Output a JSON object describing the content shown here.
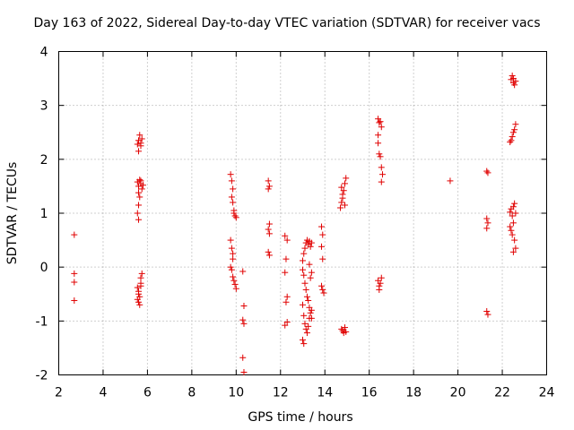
{
  "chart_data": {
    "type": "scatter",
    "title": "Day 163 of 2022, Sidereal Day-to-day VTEC variation (SDTVAR) for receiver vacs",
    "xlabel": "GPS time / hours",
    "ylabel": "SDTVAR / TECUs",
    "xlim": [
      2,
      24
    ],
    "ylim": [
      -2,
      4
    ],
    "xticks": [
      "2",
      "4",
      "6",
      "8",
      "10",
      "12",
      "14",
      "16",
      "18",
      "20",
      "22",
      "24"
    ],
    "yticks": [
      "-2",
      "-1",
      "0",
      "1",
      "2",
      "3",
      "4"
    ],
    "grid": true,
    "marker": "+",
    "color": "#e00000",
    "series": [
      {
        "name": "SDTVAR",
        "points": [
          [
            2.7,
            0.6
          ],
          [
            2.7,
            -0.12
          ],
          [
            2.7,
            -0.28
          ],
          [
            2.7,
            -0.62
          ],
          [
            5.55,
            2.28
          ],
          [
            5.6,
            2.35
          ],
          [
            5.65,
            2.45
          ],
          [
            5.7,
            2.3
          ],
          [
            5.75,
            2.38
          ],
          [
            5.6,
            2.15
          ],
          [
            5.7,
            2.25
          ],
          [
            5.55,
            1.58
          ],
          [
            5.6,
            1.5
          ],
          [
            5.65,
            1.62
          ],
          [
            5.7,
            1.55
          ],
          [
            5.75,
            1.45
          ],
          [
            5.6,
            1.38
          ],
          [
            5.65,
            1.3
          ],
          [
            5.7,
            1.6
          ],
          [
            5.8,
            1.52
          ],
          [
            5.6,
            1.15
          ],
          [
            5.55,
            1.0
          ],
          [
            5.6,
            0.88
          ],
          [
            5.55,
            -0.38
          ],
          [
            5.6,
            -0.45
          ],
          [
            5.65,
            -0.55
          ],
          [
            5.7,
            -0.35
          ],
          [
            5.75,
            -0.12
          ],
          [
            5.7,
            -0.2
          ],
          [
            5.6,
            -0.65
          ],
          [
            5.65,
            -0.7
          ],
          [
            5.55,
            -0.6
          ],
          [
            5.7,
            -0.3
          ],
          [
            5.6,
            -0.5
          ],
          [
            9.75,
            1.72
          ],
          [
            9.8,
            1.6
          ],
          [
            9.85,
            1.45
          ],
          [
            9.8,
            1.3
          ],
          [
            9.85,
            1.2
          ],
          [
            9.9,
            1.05
          ],
          [
            9.95,
            0.95
          ],
          [
            9.9,
            1.0
          ],
          [
            10.0,
            0.92
          ],
          [
            9.75,
            0.5
          ],
          [
            9.8,
            0.35
          ],
          [
            9.85,
            0.25
          ],
          [
            9.75,
            0.0
          ],
          [
            9.8,
            -0.05
          ],
          [
            9.85,
            -0.18
          ],
          [
            9.9,
            -0.25
          ],
          [
            9.95,
            -0.32
          ],
          [
            10.0,
            -0.4
          ],
          [
            9.85,
            0.15
          ],
          [
            10.3,
            -0.08
          ],
          [
            10.35,
            -0.72
          ],
          [
            10.3,
            -0.98
          ],
          [
            10.35,
            -1.05
          ],
          [
            10.3,
            -1.68
          ],
          [
            10.35,
            -1.95
          ],
          [
            11.45,
            1.6
          ],
          [
            11.5,
            1.5
          ],
          [
            11.45,
            1.45
          ],
          [
            11.5,
            0.8
          ],
          [
            11.45,
            0.7
          ],
          [
            11.5,
            0.62
          ],
          [
            11.45,
            0.28
          ],
          [
            11.5,
            0.22
          ],
          [
            12.2,
            0.58
          ],
          [
            12.3,
            0.5
          ],
          [
            12.25,
            0.15
          ],
          [
            12.2,
            -0.1
          ],
          [
            12.3,
            -0.55
          ],
          [
            12.25,
            -0.65
          ],
          [
            12.3,
            -1.02
          ],
          [
            12.2,
            -1.08
          ],
          [
            13.0,
            0.12
          ],
          [
            13.05,
            0.25
          ],
          [
            13.1,
            0.35
          ],
          [
            13.15,
            0.45
          ],
          [
            13.2,
            0.5
          ],
          [
            13.25,
            0.42
          ],
          [
            13.3,
            0.48
          ],
          [
            13.35,
            0.38
          ],
          [
            13.4,
            0.45
          ],
          [
            13.0,
            -0.05
          ],
          [
            13.05,
            -0.15
          ],
          [
            13.1,
            -0.3
          ],
          [
            13.15,
            -0.42
          ],
          [
            13.2,
            -0.55
          ],
          [
            13.25,
            -0.62
          ],
          [
            13.3,
            -0.75
          ],
          [
            13.35,
            -0.85
          ],
          [
            13.4,
            -0.95
          ],
          [
            13.0,
            -0.7
          ],
          [
            13.05,
            -0.9
          ],
          [
            13.1,
            -1.05
          ],
          [
            13.15,
            -1.15
          ],
          [
            13.2,
            -1.22
          ],
          [
            13.0,
            -1.35
          ],
          [
            13.05,
            -1.42
          ],
          [
            13.25,
            -1.1
          ],
          [
            13.3,
            -0.95
          ],
          [
            13.4,
            -0.8
          ],
          [
            13.35,
            -0.2
          ],
          [
            13.4,
            -0.1
          ],
          [
            13.3,
            0.05
          ],
          [
            13.85,
            0.75
          ],
          [
            13.9,
            0.6
          ],
          [
            13.85,
            0.38
          ],
          [
            13.9,
            0.15
          ],
          [
            13.85,
            -0.35
          ],
          [
            13.9,
            -0.42
          ],
          [
            13.95,
            -0.48
          ],
          [
            14.7,
            1.1
          ],
          [
            14.75,
            1.2
          ],
          [
            14.8,
            1.35
          ],
          [
            14.85,
            1.42
          ],
          [
            14.9,
            1.55
          ],
          [
            14.95,
            1.65
          ],
          [
            14.8,
            1.28
          ],
          [
            14.9,
            1.15
          ],
          [
            14.75,
            1.48
          ],
          [
            14.75,
            -1.15
          ],
          [
            14.8,
            -1.18
          ],
          [
            14.85,
            -1.22
          ],
          [
            14.9,
            -1.12
          ],
          [
            14.95,
            -1.2
          ],
          [
            16.4,
            2.75
          ],
          [
            16.45,
            2.68
          ],
          [
            16.5,
            2.7
          ],
          [
            16.55,
            2.6
          ],
          [
            16.4,
            2.3
          ],
          [
            16.45,
            2.1
          ],
          [
            16.5,
            2.05
          ],
          [
            16.55,
            1.85
          ],
          [
            16.6,
            1.72
          ],
          [
            16.55,
            1.58
          ],
          [
            16.4,
            2.45
          ],
          [
            16.4,
            -0.25
          ],
          [
            16.45,
            -0.35
          ],
          [
            16.5,
            -0.3
          ],
          [
            16.55,
            -0.2
          ],
          [
            16.45,
            -0.42
          ],
          [
            19.65,
            1.6
          ],
          [
            21.3,
            1.78
          ],
          [
            21.35,
            1.75
          ],
          [
            21.3,
            0.9
          ],
          [
            21.35,
            0.82
          ],
          [
            21.3,
            0.72
          ],
          [
            21.3,
            -0.82
          ],
          [
            21.35,
            -0.88
          ],
          [
            22.4,
            3.48
          ],
          [
            22.45,
            3.55
          ],
          [
            22.5,
            3.42
          ],
          [
            22.55,
            3.38
          ],
          [
            22.6,
            3.45
          ],
          [
            22.5,
            3.5
          ],
          [
            22.35,
            2.32
          ],
          [
            22.4,
            2.35
          ],
          [
            22.45,
            2.42
          ],
          [
            22.5,
            2.5
          ],
          [
            22.55,
            2.55
          ],
          [
            22.6,
            2.65
          ],
          [
            22.35,
            1.02
          ],
          [
            22.4,
            1.08
          ],
          [
            22.45,
            0.95
          ],
          [
            22.5,
            1.12
          ],
          [
            22.55,
            1.18
          ],
          [
            22.6,
            1.0
          ],
          [
            22.35,
            0.75
          ],
          [
            22.4,
            0.68
          ],
          [
            22.45,
            0.6
          ],
          [
            22.5,
            0.82
          ],
          [
            22.55,
            0.5
          ],
          [
            22.6,
            0.35
          ],
          [
            22.5,
            0.28
          ]
        ]
      }
    ]
  }
}
